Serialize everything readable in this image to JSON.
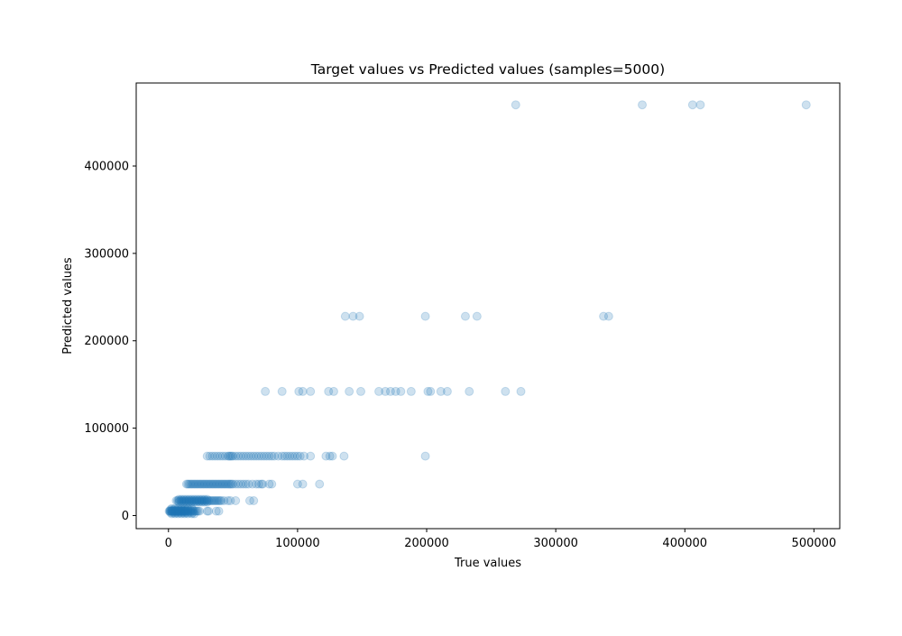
{
  "chart_data": {
    "type": "scatter",
    "title": "Target values vs Predicted values (samples=5000)",
    "xlabel": "True values",
    "ylabel": "Predicted values",
    "xlim": [
      -25000,
      520000
    ],
    "ylim": [
      -15000,
      495000
    ],
    "xticks": [
      0,
      100000,
      200000,
      300000,
      400000,
      500000
    ],
    "yticks": [
      0,
      100000,
      200000,
      300000,
      400000
    ],
    "xtick_labels": [
      "0",
      "100000",
      "200000",
      "300000",
      "400000",
      "500000"
    ],
    "ytick_labels": [
      "0",
      "100000",
      "200000",
      "300000",
      "400000"
    ],
    "grid": false,
    "marker_color": "#1f77b4",
    "marker_alpha": 0.22,
    "series": [
      {
        "points": [
          [
            500,
            5000
          ],
          [
            1000,
            5000
          ],
          [
            1500,
            5000
          ],
          [
            2000,
            5000
          ],
          [
            2500,
            5000
          ],
          [
            3000,
            5000
          ],
          [
            3500,
            5000
          ],
          [
            4000,
            5000
          ],
          [
            4500,
            5000
          ],
          [
            5000,
            5000
          ],
          [
            5500,
            5000
          ],
          [
            6000,
            5000
          ],
          [
            6500,
            5000
          ],
          [
            7000,
            5000
          ],
          [
            7500,
            5000
          ],
          [
            8000,
            5000
          ],
          [
            8500,
            5000
          ],
          [
            9000,
            5000
          ],
          [
            9500,
            5000
          ],
          [
            10000,
            5000
          ],
          [
            10500,
            5000
          ],
          [
            11000,
            5000
          ],
          [
            11500,
            5000
          ],
          [
            12000,
            5000
          ],
          [
            12500,
            5000
          ],
          [
            13000,
            5000
          ],
          [
            13500,
            5000
          ],
          [
            14000,
            5000
          ],
          [
            15000,
            5000
          ],
          [
            16000,
            5000
          ],
          [
            17000,
            5000
          ],
          [
            18000,
            5000
          ],
          [
            19000,
            5000
          ],
          [
            20000,
            5000
          ],
          [
            21000,
            5000
          ],
          [
            22000,
            5000
          ],
          [
            23000,
            5000
          ],
          [
            24000,
            5000
          ],
          [
            30000,
            5000
          ],
          [
            31000,
            5000
          ],
          [
            37000,
            5000
          ],
          [
            39000,
            5000
          ],
          [
            1500,
            3500
          ],
          [
            3000,
            3500
          ],
          [
            4500,
            3500
          ],
          [
            6000,
            3500
          ],
          [
            7500,
            3500
          ],
          [
            9000,
            3500
          ],
          [
            10500,
            3500
          ],
          [
            12000,
            3500
          ],
          [
            13500,
            3500
          ],
          [
            15000,
            3500
          ],
          [
            17000,
            3500
          ],
          [
            19000,
            3500
          ],
          [
            1500,
            6500
          ],
          [
            3000,
            6500
          ],
          [
            4500,
            6500
          ],
          [
            6000,
            6500
          ],
          [
            7500,
            6500
          ],
          [
            9000,
            6500
          ],
          [
            10500,
            6500
          ],
          [
            12000,
            6500
          ],
          [
            13500,
            6500
          ],
          [
            15000,
            6500
          ],
          [
            17000,
            6500
          ],
          [
            19000,
            6500
          ],
          [
            2500,
            2000
          ],
          [
            5000,
            2000
          ],
          [
            7500,
            2000
          ],
          [
            10000,
            2000
          ],
          [
            12500,
            2000
          ],
          [
            15000,
            2000
          ],
          [
            18000,
            2000
          ],
          [
            20000,
            2000
          ],
          [
            2500,
            8000
          ],
          [
            5000,
            8000
          ],
          [
            7500,
            8000
          ],
          [
            10000,
            8000
          ],
          [
            12500,
            8000
          ],
          [
            15000,
            8000
          ],
          [
            18000,
            8000
          ],
          [
            6000,
            17000
          ],
          [
            7000,
            17000
          ],
          [
            8000,
            17000
          ],
          [
            9000,
            17000
          ],
          [
            10000,
            17000
          ],
          [
            11000,
            17000
          ],
          [
            12000,
            17000
          ],
          [
            13000,
            17000
          ],
          [
            14000,
            17000
          ],
          [
            15000,
            17000
          ],
          [
            16000,
            17000
          ],
          [
            17000,
            17000
          ],
          [
            18000,
            17000
          ],
          [
            19000,
            17000
          ],
          [
            20000,
            17000
          ],
          [
            21000,
            17000
          ],
          [
            22000,
            17000
          ],
          [
            23000,
            17000
          ],
          [
            24000,
            17000
          ],
          [
            25000,
            17000
          ],
          [
            26000,
            17000
          ],
          [
            27000,
            17000
          ],
          [
            28000,
            17000
          ],
          [
            29000,
            17000
          ],
          [
            30000,
            17000
          ],
          [
            31000,
            17000
          ],
          [
            32000,
            17000
          ],
          [
            33000,
            17000
          ],
          [
            34000,
            17000
          ],
          [
            35000,
            17000
          ],
          [
            36000,
            17000
          ],
          [
            37000,
            17000
          ],
          [
            38000,
            17000
          ],
          [
            39000,
            17000
          ],
          [
            40000,
            17000
          ],
          [
            41000,
            17000
          ],
          [
            43000,
            17000
          ],
          [
            46000,
            17000
          ],
          [
            48000,
            17000
          ],
          [
            52000,
            17000
          ],
          [
            63000,
            17000
          ],
          [
            66000,
            17000
          ],
          [
            8000,
            15500
          ],
          [
            10000,
            15500
          ],
          [
            12000,
            15500
          ],
          [
            14000,
            15500
          ],
          [
            16000,
            15500
          ],
          [
            18000,
            15500
          ],
          [
            20000,
            15500
          ],
          [
            22000,
            15500
          ],
          [
            24000,
            15500
          ],
          [
            26000,
            15500
          ],
          [
            28000,
            15500
          ],
          [
            30000,
            15500
          ],
          [
            8000,
            18500
          ],
          [
            10000,
            18500
          ],
          [
            12000,
            18500
          ],
          [
            14000,
            18500
          ],
          [
            16000,
            18500
          ],
          [
            18000,
            18500
          ],
          [
            20000,
            18500
          ],
          [
            22000,
            18500
          ],
          [
            24000,
            18500
          ],
          [
            26000,
            18500
          ],
          [
            28000,
            18500
          ],
          [
            30000,
            18500
          ],
          [
            14000,
            36000
          ],
          [
            15000,
            36000
          ],
          [
            16000,
            36000
          ],
          [
            17000,
            36000
          ],
          [
            18000,
            36000
          ],
          [
            19000,
            36000
          ],
          [
            20000,
            36000
          ],
          [
            21000,
            36000
          ],
          [
            22000,
            36000
          ],
          [
            23000,
            36000
          ],
          [
            24000,
            36000
          ],
          [
            25000,
            36000
          ],
          [
            26000,
            36000
          ],
          [
            27000,
            36000
          ],
          [
            28000,
            36000
          ],
          [
            29000,
            36000
          ],
          [
            30000,
            36000
          ],
          [
            31000,
            36000
          ],
          [
            32000,
            36000
          ],
          [
            33000,
            36000
          ],
          [
            34000,
            36000
          ],
          [
            35000,
            36000
          ],
          [
            36000,
            36000
          ],
          [
            37000,
            36000
          ],
          [
            38000,
            36000
          ],
          [
            39000,
            36000
          ],
          [
            40000,
            36000
          ],
          [
            41000,
            36000
          ],
          [
            42000,
            36000
          ],
          [
            43000,
            36000
          ],
          [
            44000,
            36000
          ],
          [
            45000,
            36000
          ],
          [
            46000,
            36000
          ],
          [
            47000,
            36000
          ],
          [
            48000,
            36000
          ],
          [
            49000,
            36000
          ],
          [
            50000,
            36000
          ],
          [
            52000,
            36000
          ],
          [
            54000,
            36000
          ],
          [
            56000,
            36000
          ],
          [
            58000,
            36000
          ],
          [
            60000,
            36000
          ],
          [
            62000,
            36000
          ],
          [
            65000,
            36000
          ],
          [
            68000,
            36000
          ],
          [
            70000,
            36000
          ],
          [
            72000,
            36000
          ],
          [
            73000,
            36000
          ],
          [
            78000,
            36000
          ],
          [
            80000,
            36000
          ],
          [
            100000,
            36000
          ],
          [
            104000,
            36000
          ],
          [
            117000,
            36000
          ],
          [
            30000,
            68000
          ],
          [
            32000,
            68000
          ],
          [
            34000,
            68000
          ],
          [
            36000,
            68000
          ],
          [
            38000,
            68000
          ],
          [
            40000,
            68000
          ],
          [
            42000,
            68000
          ],
          [
            44000,
            68000
          ],
          [
            46000,
            68000
          ],
          [
            47000,
            68000
          ],
          [
            48000,
            68000
          ],
          [
            49000,
            68000
          ],
          [
            50000,
            68000
          ],
          [
            52000,
            68000
          ],
          [
            54000,
            68000
          ],
          [
            56000,
            68000
          ],
          [
            58000,
            68000
          ],
          [
            60000,
            68000
          ],
          [
            62000,
            68000
          ],
          [
            64000,
            68000
          ],
          [
            66000,
            68000
          ],
          [
            68000,
            68000
          ],
          [
            70000,
            68000
          ],
          [
            72000,
            68000
          ],
          [
            74000,
            68000
          ],
          [
            76000,
            68000
          ],
          [
            78000,
            68000
          ],
          [
            80000,
            68000
          ],
          [
            82000,
            68000
          ],
          [
            85000,
            68000
          ],
          [
            88000,
            68000
          ],
          [
            90000,
            68000
          ],
          [
            92000,
            68000
          ],
          [
            94000,
            68000
          ],
          [
            96000,
            68000
          ],
          [
            98000,
            68000
          ],
          [
            100000,
            68000
          ],
          [
            102000,
            68000
          ],
          [
            105000,
            68000
          ],
          [
            110000,
            68000
          ],
          [
            122000,
            68000
          ],
          [
            125000,
            68000
          ],
          [
            127000,
            68000
          ],
          [
            136000,
            68000
          ],
          [
            199000,
            68000
          ],
          [
            75000,
            142000
          ],
          [
            88000,
            142000
          ],
          [
            101000,
            142000
          ],
          [
            104000,
            142000
          ],
          [
            110000,
            142000
          ],
          [
            124000,
            142000
          ],
          [
            128000,
            142000
          ],
          [
            140000,
            142000
          ],
          [
            149000,
            142000
          ],
          [
            163000,
            142000
          ],
          [
            168000,
            142000
          ],
          [
            172000,
            142000
          ],
          [
            176000,
            142000
          ],
          [
            180000,
            142000
          ],
          [
            188000,
            142000
          ],
          [
            201000,
            142000
          ],
          [
            203000,
            142000
          ],
          [
            211000,
            142000
          ],
          [
            216000,
            142000
          ],
          [
            233000,
            142000
          ],
          [
            261000,
            142000
          ],
          [
            273000,
            142000
          ],
          [
            137000,
            228000
          ],
          [
            143000,
            228000
          ],
          [
            148000,
            228000
          ],
          [
            199000,
            228000
          ],
          [
            230000,
            228000
          ],
          [
            239000,
            228000
          ],
          [
            337000,
            228000
          ],
          [
            341000,
            228000
          ],
          [
            269000,
            470000
          ],
          [
            367000,
            470000
          ],
          [
            406000,
            470000
          ],
          [
            412000,
            470000
          ],
          [
            494000,
            470000
          ]
        ]
      }
    ]
  }
}
